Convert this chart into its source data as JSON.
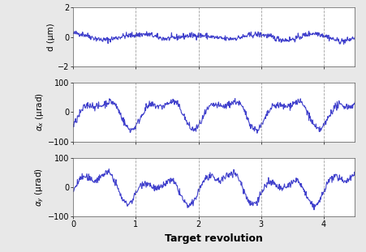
{
  "title_x": "Target revolution",
  "ylabel_d": "d (μm)",
  "ylabel_ax": "$\\alpha_x$ (μrad)",
  "ylabel_ay": "$\\alpha_y$ (μrad)",
  "xlim": [
    0,
    4.5
  ],
  "ylim_d": [
    -2,
    2
  ],
  "ylim_a": [
    -100,
    100
  ],
  "yticks_d": [
    -2,
    0,
    2
  ],
  "yticks_a": [
    -100,
    0,
    100
  ],
  "xticks": [
    0,
    1,
    2,
    3,
    4
  ],
  "vlines": [
    1,
    2,
    3,
    4
  ],
  "line_color": "#4040cc",
  "line_width": 0.8,
  "background_color": "#e8e8e8",
  "axes_background": "#ffffff",
  "seed": 42,
  "n_points": 600,
  "x_max": 4.5
}
